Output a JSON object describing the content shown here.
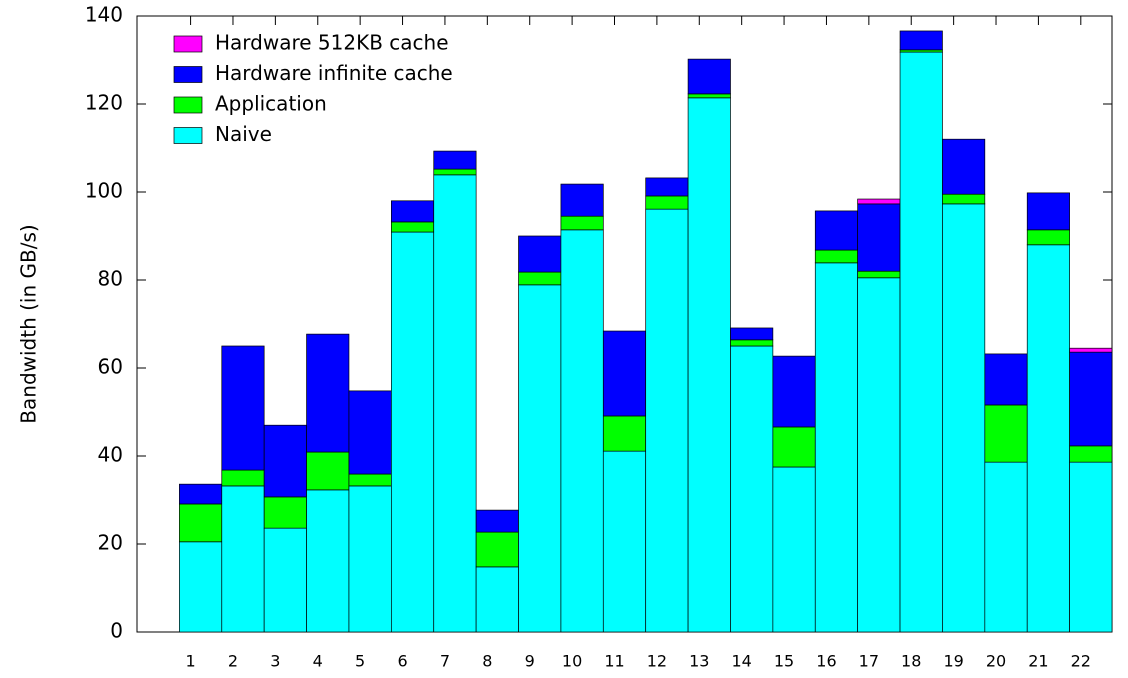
{
  "chart_data": {
    "type": "stacked_bar",
    "y_label": "Bandwidth (in GB/s)",
    "categories": [
      "1",
      "2",
      "3",
      "4",
      "5",
      "6",
      "7",
      "8",
      "9",
      "10",
      "11",
      "12",
      "13",
      "14",
      "15",
      "16",
      "17",
      "18",
      "19",
      "20",
      "21",
      "22"
    ],
    "series": [
      {
        "name": "Naive",
        "color": "#00ffff",
        "values": [
          20.5,
          33.2,
          23.6,
          32.3,
          33.2,
          90.9,
          103.9,
          14.8,
          78.9,
          91.4,
          41.1,
          96.1,
          121.4,
          65.0,
          37.5,
          83.9,
          80.5,
          131.8,
          97.3,
          38.6,
          88.0,
          38.6
        ]
      },
      {
        "name": "Application",
        "color": "#00ff00",
        "values": [
          8.6,
          3.6,
          7.1,
          8.6,
          2.7,
          2.3,
          1.3,
          7.9,
          2.9,
          3.1,
          8.0,
          3.0,
          0.9,
          1.4,
          9.1,
          2.9,
          1.5,
          0.5,
          2.2,
          13.0,
          3.4,
          3.7
        ]
      },
      {
        "name": "Hardware infinite cache",
        "color": "#0000ff",
        "values": [
          4.5,
          28.2,
          16.3,
          26.8,
          18.9,
          4.8,
          4.1,
          5.0,
          8.2,
          7.3,
          19.3,
          4.1,
          7.9,
          2.7,
          16.1,
          8.9,
          15.3,
          4.3,
          12.5,
          11.6,
          8.4,
          21.3
        ]
      },
      {
        "name": "Hardware 512KB cache",
        "color": "#ff00ff",
        "values": [
          0,
          0,
          0,
          0,
          0,
          0,
          0,
          0,
          0,
          0,
          0,
          0,
          0,
          0,
          0,
          0,
          1.1,
          0,
          0,
          0,
          0,
          0.9
        ]
      }
    ],
    "ylim": [
      0,
      140
    ],
    "yticks": [
      0,
      20,
      40,
      60,
      80,
      100,
      120,
      140
    ],
    "legend": "top-left"
  }
}
